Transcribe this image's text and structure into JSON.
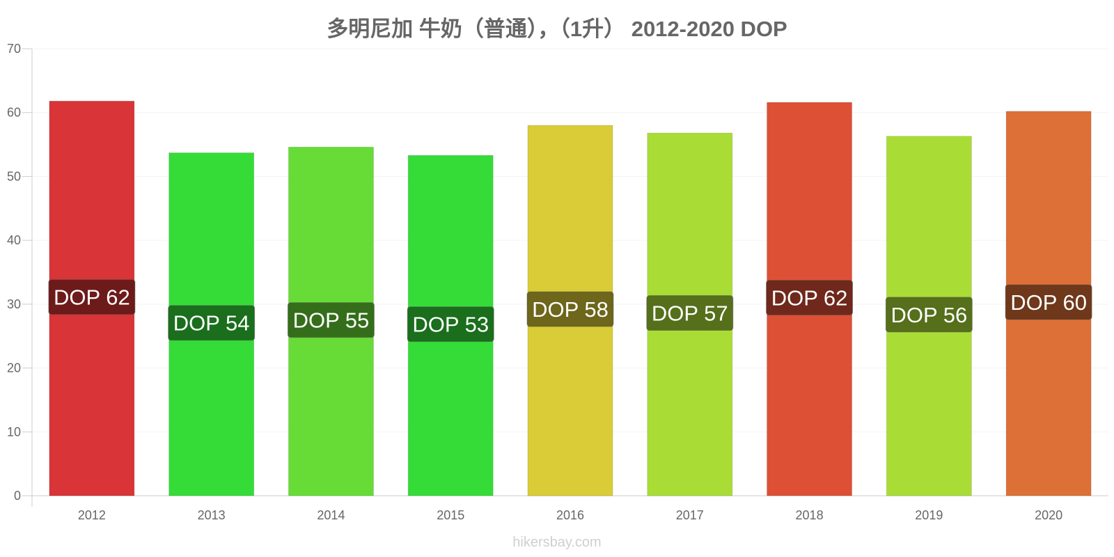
{
  "chart_data": {
    "type": "bar",
    "title": "多明尼加 牛奶（普通），（1升） 2012-2020 DOP",
    "categories": [
      "2012",
      "2013",
      "2014",
      "2015",
      "2016",
      "2017",
      "2018",
      "2019",
      "2020"
    ],
    "values": [
      61.8,
      53.7,
      54.6,
      53.3,
      58.0,
      56.8,
      61.6,
      56.3,
      60.2
    ],
    "data_labels": [
      "DOP 62",
      "DOP 54",
      "DOP 55",
      "DOP 53",
      "DOP 58",
      "DOP 57",
      "DOP 62",
      "DOP 56",
      "DOP 60"
    ],
    "bar_colors": [
      "#d93437",
      "#35dc38",
      "#67dc36",
      "#35dc38",
      "#d9cc36",
      "#a9dd36",
      "#dd5035",
      "#a9dd36",
      "#dd7036"
    ],
    "label_bg_colors": [
      "#6d1a1b",
      "#1a6e1c",
      "#346e1b",
      "#1a6e1c",
      "#6d661b",
      "#556f1b",
      "#6f281b",
      "#556f1b",
      "#6f381b"
    ],
    "yticks": [
      "0",
      "10",
      "20",
      "30",
      "40",
      "50",
      "60",
      "70"
    ],
    "ylim": [
      0,
      70
    ],
    "xlabel": "",
    "ylabel": "",
    "grid": true,
    "legend": "none"
  },
  "footer": "hikersbay.com"
}
